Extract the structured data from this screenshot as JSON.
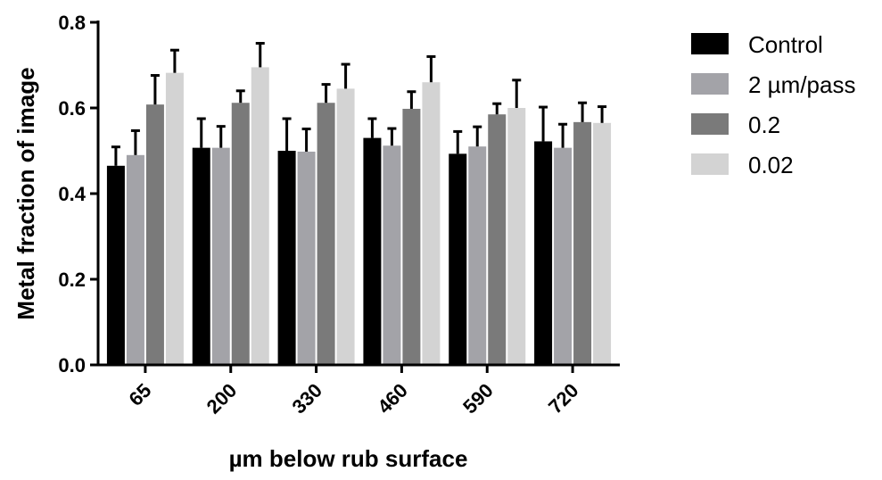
{
  "chart_data": {
    "type": "bar",
    "title": "",
    "xlabel": "µm below rub surface",
    "ylabel": "Metal fraction of image",
    "ylim": [
      0,
      0.8
    ],
    "yticks": [
      "0.0",
      "0.2",
      "0.4",
      "0.6",
      "0.8"
    ],
    "categories": [
      "65",
      "200",
      "330",
      "460",
      "590",
      "720"
    ],
    "legend_position": "right",
    "error_bars": "upper",
    "series": [
      {
        "name": "Control",
        "color": "#000000",
        "values": [
          0.465,
          0.507,
          0.5,
          0.53,
          0.493,
          0.522
        ],
        "errors": [
          0.044,
          0.068,
          0.075,
          0.045,
          0.052,
          0.08
        ]
      },
      {
        "name": "2 µm/pass",
        "color": "#a3a3a8",
        "values": [
          0.49,
          0.507,
          0.498,
          0.512,
          0.51,
          0.507
        ],
        "errors": [
          0.057,
          0.05,
          0.053,
          0.04,
          0.046,
          0.055
        ]
      },
      {
        "name": "0.2",
        "color": "#7a7a7a",
        "values": [
          0.608,
          0.612,
          0.612,
          0.598,
          0.585,
          0.567
        ],
        "errors": [
          0.068,
          0.028,
          0.043,
          0.04,
          0.025,
          0.045
        ]
      },
      {
        "name": "0.02",
        "color": "#d3d3d3",
        "values": [
          0.682,
          0.695,
          0.645,
          0.66,
          0.6,
          0.565
        ],
        "errors": [
          0.053,
          0.056,
          0.057,
          0.06,
          0.065,
          0.038
        ]
      }
    ]
  }
}
